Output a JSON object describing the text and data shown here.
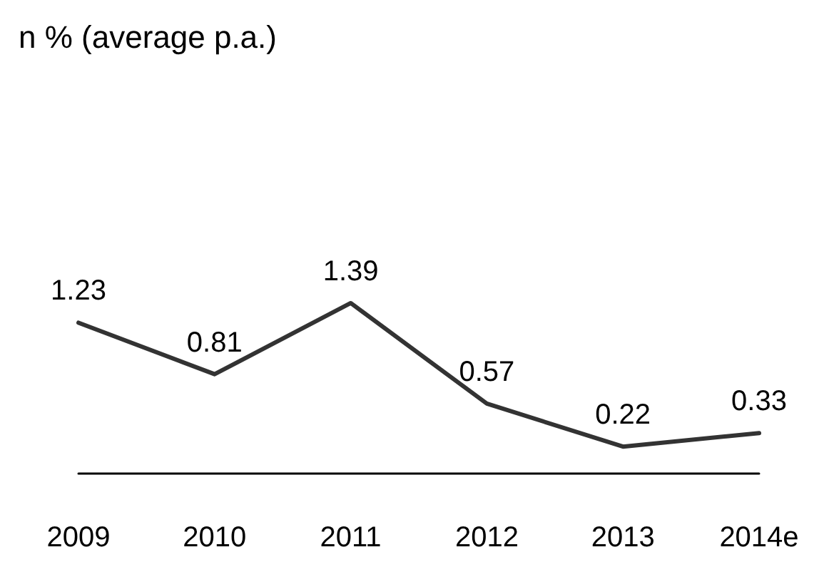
{
  "chart_data": {
    "type": "line",
    "title": "n % (average p.a.)",
    "categories": [
      "2009",
      "2010",
      "2011",
      "2012",
      "2013",
      "2014e"
    ],
    "series": [
      {
        "color": "#333333",
        "values": [
          1.23,
          0.81,
          1.39,
          0.57,
          0.22,
          0.33
        ]
      }
    ],
    "tick_labels": "x",
    "grid": false,
    "marker": "none",
    "line_style": "solid",
    "data_labels": true
  }
}
